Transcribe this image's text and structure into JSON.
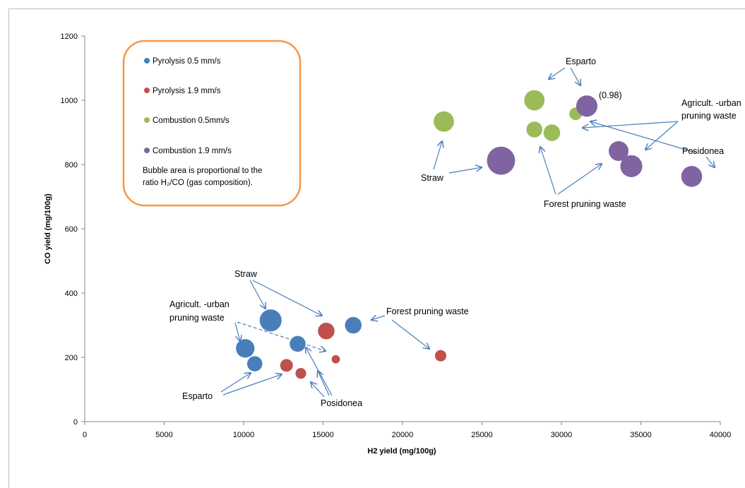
{
  "chart_data": {
    "type": "scatter",
    "subtype": "bubble",
    "title": "",
    "xlabel": "H2 yield (mg/100g)",
    "ylabel": "CO yield (mg/100g)",
    "xlim": [
      0,
      40000
    ],
    "ylim": [
      0,
      1200
    ],
    "xticks": [
      0,
      5000,
      10000,
      15000,
      20000,
      25000,
      30000,
      35000,
      40000
    ],
    "yticks": [
      0,
      200,
      400,
      600,
      800,
      1000,
      1200
    ],
    "grid": false,
    "legend_position": "top-left",
    "legend_note": "Bubble area is proportional to the ratio H₂/CO (gas composition).",
    "series": [
      {
        "name": "Pyrolysis 0.5 mm/s",
        "color": "#4a7ebb",
        "points": [
          {
            "x": 11700,
            "y": 315,
            "ratio": 1.05
          },
          {
            "x": 10100,
            "y": 228,
            "ratio": 0.75
          },
          {
            "x": 10700,
            "y": 180,
            "ratio": 0.5
          },
          {
            "x": 13400,
            "y": 242,
            "ratio": 0.55
          },
          {
            "x": 16900,
            "y": 300,
            "ratio": 0.6
          }
        ]
      },
      {
        "name": "Pyrolysis 1.9 mm/s",
        "color": "#c0504d",
        "points": [
          {
            "x": 15200,
            "y": 282,
            "ratio": 0.6
          },
          {
            "x": 12700,
            "y": 175,
            "ratio": 0.35
          },
          {
            "x": 13600,
            "y": 150,
            "ratio": 0.25
          },
          {
            "x": 15800,
            "y": 194,
            "ratio": 0.15
          },
          {
            "x": 22400,
            "y": 205,
            "ratio": 0.28
          }
        ]
      },
      {
        "name": "Combustion 0.5mm/s",
        "color": "#9bbb59",
        "points": [
          {
            "x": 22600,
            "y": 934,
            "ratio": 0.9
          },
          {
            "x": 28300,
            "y": 1000,
            "ratio": 0.9
          },
          {
            "x": 28300,
            "y": 909,
            "ratio": 0.55
          },
          {
            "x": 29400,
            "y": 899,
            "ratio": 0.6
          },
          {
            "x": 30900,
            "y": 958,
            "ratio": 0.35
          }
        ]
      },
      {
        "name": "Combustion 1.9 mm/s",
        "color": "#8064a2",
        "points": [
          {
            "x": 26200,
            "y": 812,
            "ratio": 1.72
          },
          {
            "x": 31600,
            "y": 982,
            "ratio": 0.98
          },
          {
            "x": 33600,
            "y": 842,
            "ratio": 0.85
          },
          {
            "x": 34400,
            "y": 795,
            "ratio": 1.05
          },
          {
            "x": 38200,
            "y": 763,
            "ratio": 0.95
          }
        ]
      }
    ],
    "annotations": [
      {
        "id": "esparto-top",
        "text": "Esparto"
      },
      {
        "id": "ratio-098",
        "text": "(0.98)"
      },
      {
        "id": "agri-top",
        "text": "Agricult. -urban\npruning waste"
      },
      {
        "id": "posidonea-top",
        "text": "Posidonea"
      },
      {
        "id": "straw-top",
        "text": "Straw"
      },
      {
        "id": "forest-top",
        "text": "Forest pruning waste"
      },
      {
        "id": "straw-bottom",
        "text": "Straw"
      },
      {
        "id": "agri-bottom",
        "text": "Agricult. -urban\npruning waste"
      },
      {
        "id": "forest-bottom",
        "text": "Forest pruning waste"
      },
      {
        "id": "esparto-bottom",
        "text": "Esparto"
      },
      {
        "id": "posidonea-bottom",
        "text": "Posidonea"
      }
    ]
  },
  "colors": {
    "arrow": "#4a7ebb",
    "legend_border": "#f79646"
  }
}
